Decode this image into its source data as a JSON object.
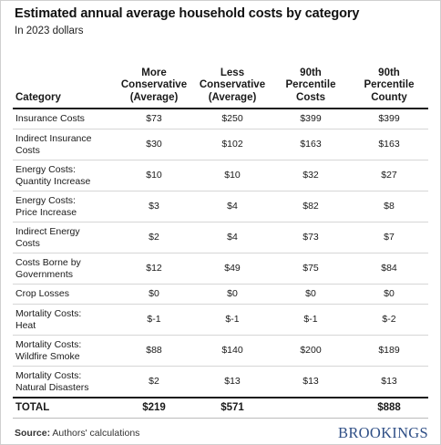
{
  "header": {
    "title": "Estimated annual average household costs by category",
    "subtitle": "In 2023 dollars"
  },
  "table": {
    "columns": [
      [
        "Category"
      ],
      [
        "More",
        "Conservative",
        "(Average)"
      ],
      [
        "Less",
        "Conservative",
        "(Average)"
      ],
      [
        "90th",
        "Percentile",
        "Costs"
      ],
      [
        "90th",
        "Percentile",
        "County"
      ]
    ],
    "rows": [
      {
        "label": [
          "Insurance Costs"
        ],
        "values": [
          "$73",
          "$250",
          "$399",
          "$399"
        ]
      },
      {
        "label": [
          "Indirect Insurance",
          "Costs"
        ],
        "values": [
          "$30",
          "$102",
          "$163",
          "$163"
        ]
      },
      {
        "label": [
          "Energy Costs:",
          "Quantity Increase"
        ],
        "values": [
          "$10",
          "$10",
          "$32",
          "$27"
        ]
      },
      {
        "label": [
          "Energy Costs:",
          "Price Increase"
        ],
        "values": [
          "$3",
          "$4",
          "$82",
          "$8"
        ]
      },
      {
        "label": [
          "Indirect Energy",
          "Costs"
        ],
        "values": [
          "$2",
          "$4",
          "$73",
          "$7"
        ]
      },
      {
        "label": [
          "Costs Borne by",
          "Governments"
        ],
        "values": [
          "$12",
          "$49",
          "$75",
          "$84"
        ]
      },
      {
        "label": [
          "Crop Losses"
        ],
        "values": [
          "$0",
          "$0",
          "$0",
          "$0"
        ]
      },
      {
        "label": [
          "Mortality Costs:",
          "Heat"
        ],
        "values": [
          "$-1",
          "$-1",
          "$-1",
          "$-2"
        ]
      },
      {
        "label": [
          "Mortality Costs:",
          "Wildfire Smoke"
        ],
        "values": [
          "$88",
          "$140",
          "$200",
          "$189"
        ]
      },
      {
        "label": [
          "Mortality Costs:",
          "Natural Disasters"
        ],
        "values": [
          "$2",
          "$13",
          "$13",
          "$13"
        ]
      }
    ],
    "total": {
      "label": "TOTAL",
      "values": [
        "$219",
        "$571",
        "",
        "$888"
      ]
    }
  },
  "footer": {
    "source_label": "Source:",
    "source_text": " Authors' calculations",
    "logo_text": "BROOKINGS"
  }
}
